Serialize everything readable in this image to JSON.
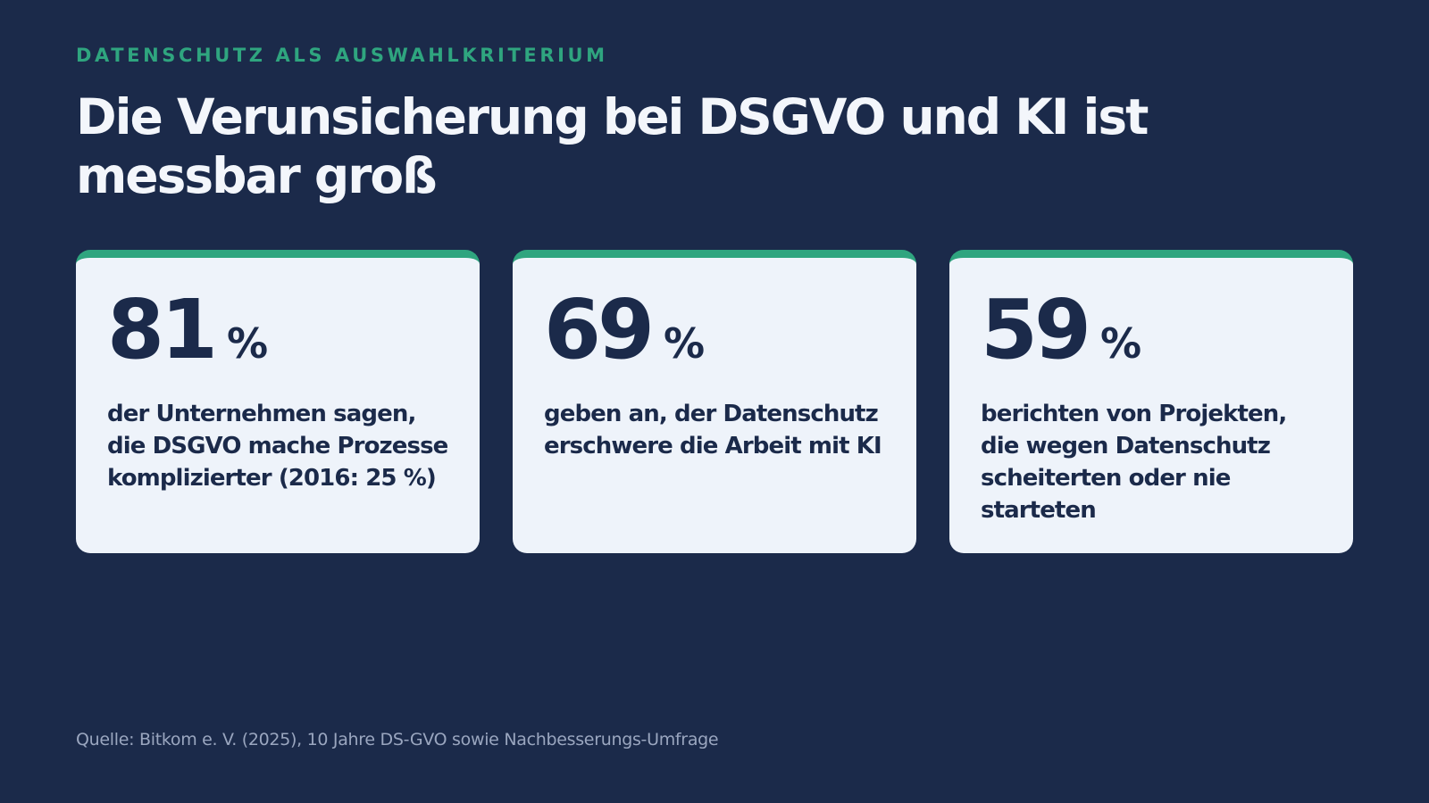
{
  "eyebrow": "DATENSCHUTZ ALS AUSWAHLKRITERIUM",
  "title": "Die Verunsicherung bei DSGVO und KI ist messbar groß",
  "colors": {
    "background": "#1b2a4a",
    "accent": "#2fa57f",
    "card": "#eef3fa",
    "text_dark": "#1b2a4a",
    "source_text": "#9aa6bf"
  },
  "stats": [
    {
      "value": "81",
      "unit": "%",
      "description": "der Unternehmen sagen, die DSGVO mache Prozesse komplizierter (2016: 25 %)"
    },
    {
      "value": "69",
      "unit": "%",
      "description": "geben an, der Datenschutz erschwere die Arbeit mit KI"
    },
    {
      "value": "59",
      "unit": "%",
      "description": "berichten von Projekten, die wegen Datenschutz scheiterten oder nie starteten"
    }
  ],
  "source": "Quelle: Bitkom e. V. (2025), 10 Jahre DS-GVO sowie Nachbesserungs-Umfrage"
}
